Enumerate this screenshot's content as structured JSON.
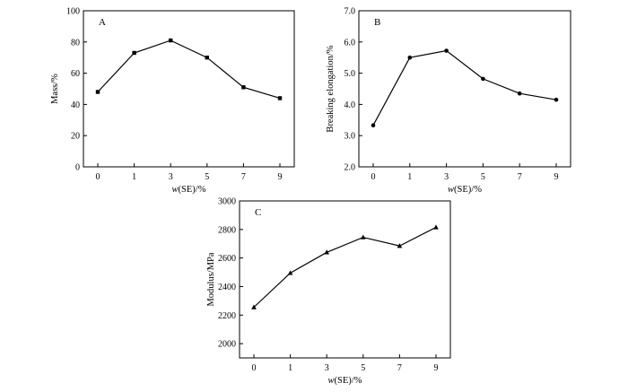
{
  "chart_data": [
    {
      "panel": "A",
      "type": "line",
      "categories": [
        "0",
        "1",
        "3",
        "5",
        "7",
        "9"
      ],
      "series": [
        {
          "values": [
            48,
            73,
            81,
            70,
            51,
            44
          ],
          "marker": "square"
        }
      ],
      "xlabel_italic": "w",
      "xlabel_rest": "(SE)/%",
      "ylabel": "Mass/%",
      "ylim": [
        0,
        100
      ],
      "yticks": [
        "0",
        "20",
        "40",
        "60",
        "80",
        "100"
      ],
      "grid": false
    },
    {
      "panel": "B",
      "type": "line",
      "categories": [
        "0",
        "1",
        "3",
        "5",
        "7",
        "9"
      ],
      "series": [
        {
          "values": [
            3.33,
            5.5,
            5.72,
            4.82,
            4.35,
            4.15
          ],
          "marker": "circle"
        }
      ],
      "xlabel_italic": "w",
      "xlabel_rest": "(SE)/%",
      "ylabel": "Breaking elongation/%",
      "ylim": [
        2.0,
        7.0
      ],
      "yticks": [
        "2.0",
        "3.0",
        "4.0",
        "5.0",
        "6.0",
        "7.0"
      ],
      "grid": false
    },
    {
      "panel": "C",
      "type": "line",
      "categories": [
        "0",
        "1",
        "3",
        "5",
        "7",
        "9"
      ],
      "series": [
        {
          "values": [
            2255,
            2495,
            2640,
            2745,
            2685,
            2815
          ],
          "marker": "triangle"
        }
      ],
      "xlabel_italic": "w",
      "xlabel_rest": "(SE)/%",
      "ylabel": "Modulus/MPa",
      "ylim": [
        1900,
        3000
      ],
      "yticks": [
        "2000",
        "2200",
        "2400",
        "2600",
        "2800",
        "3000"
      ],
      "grid": false
    }
  ]
}
